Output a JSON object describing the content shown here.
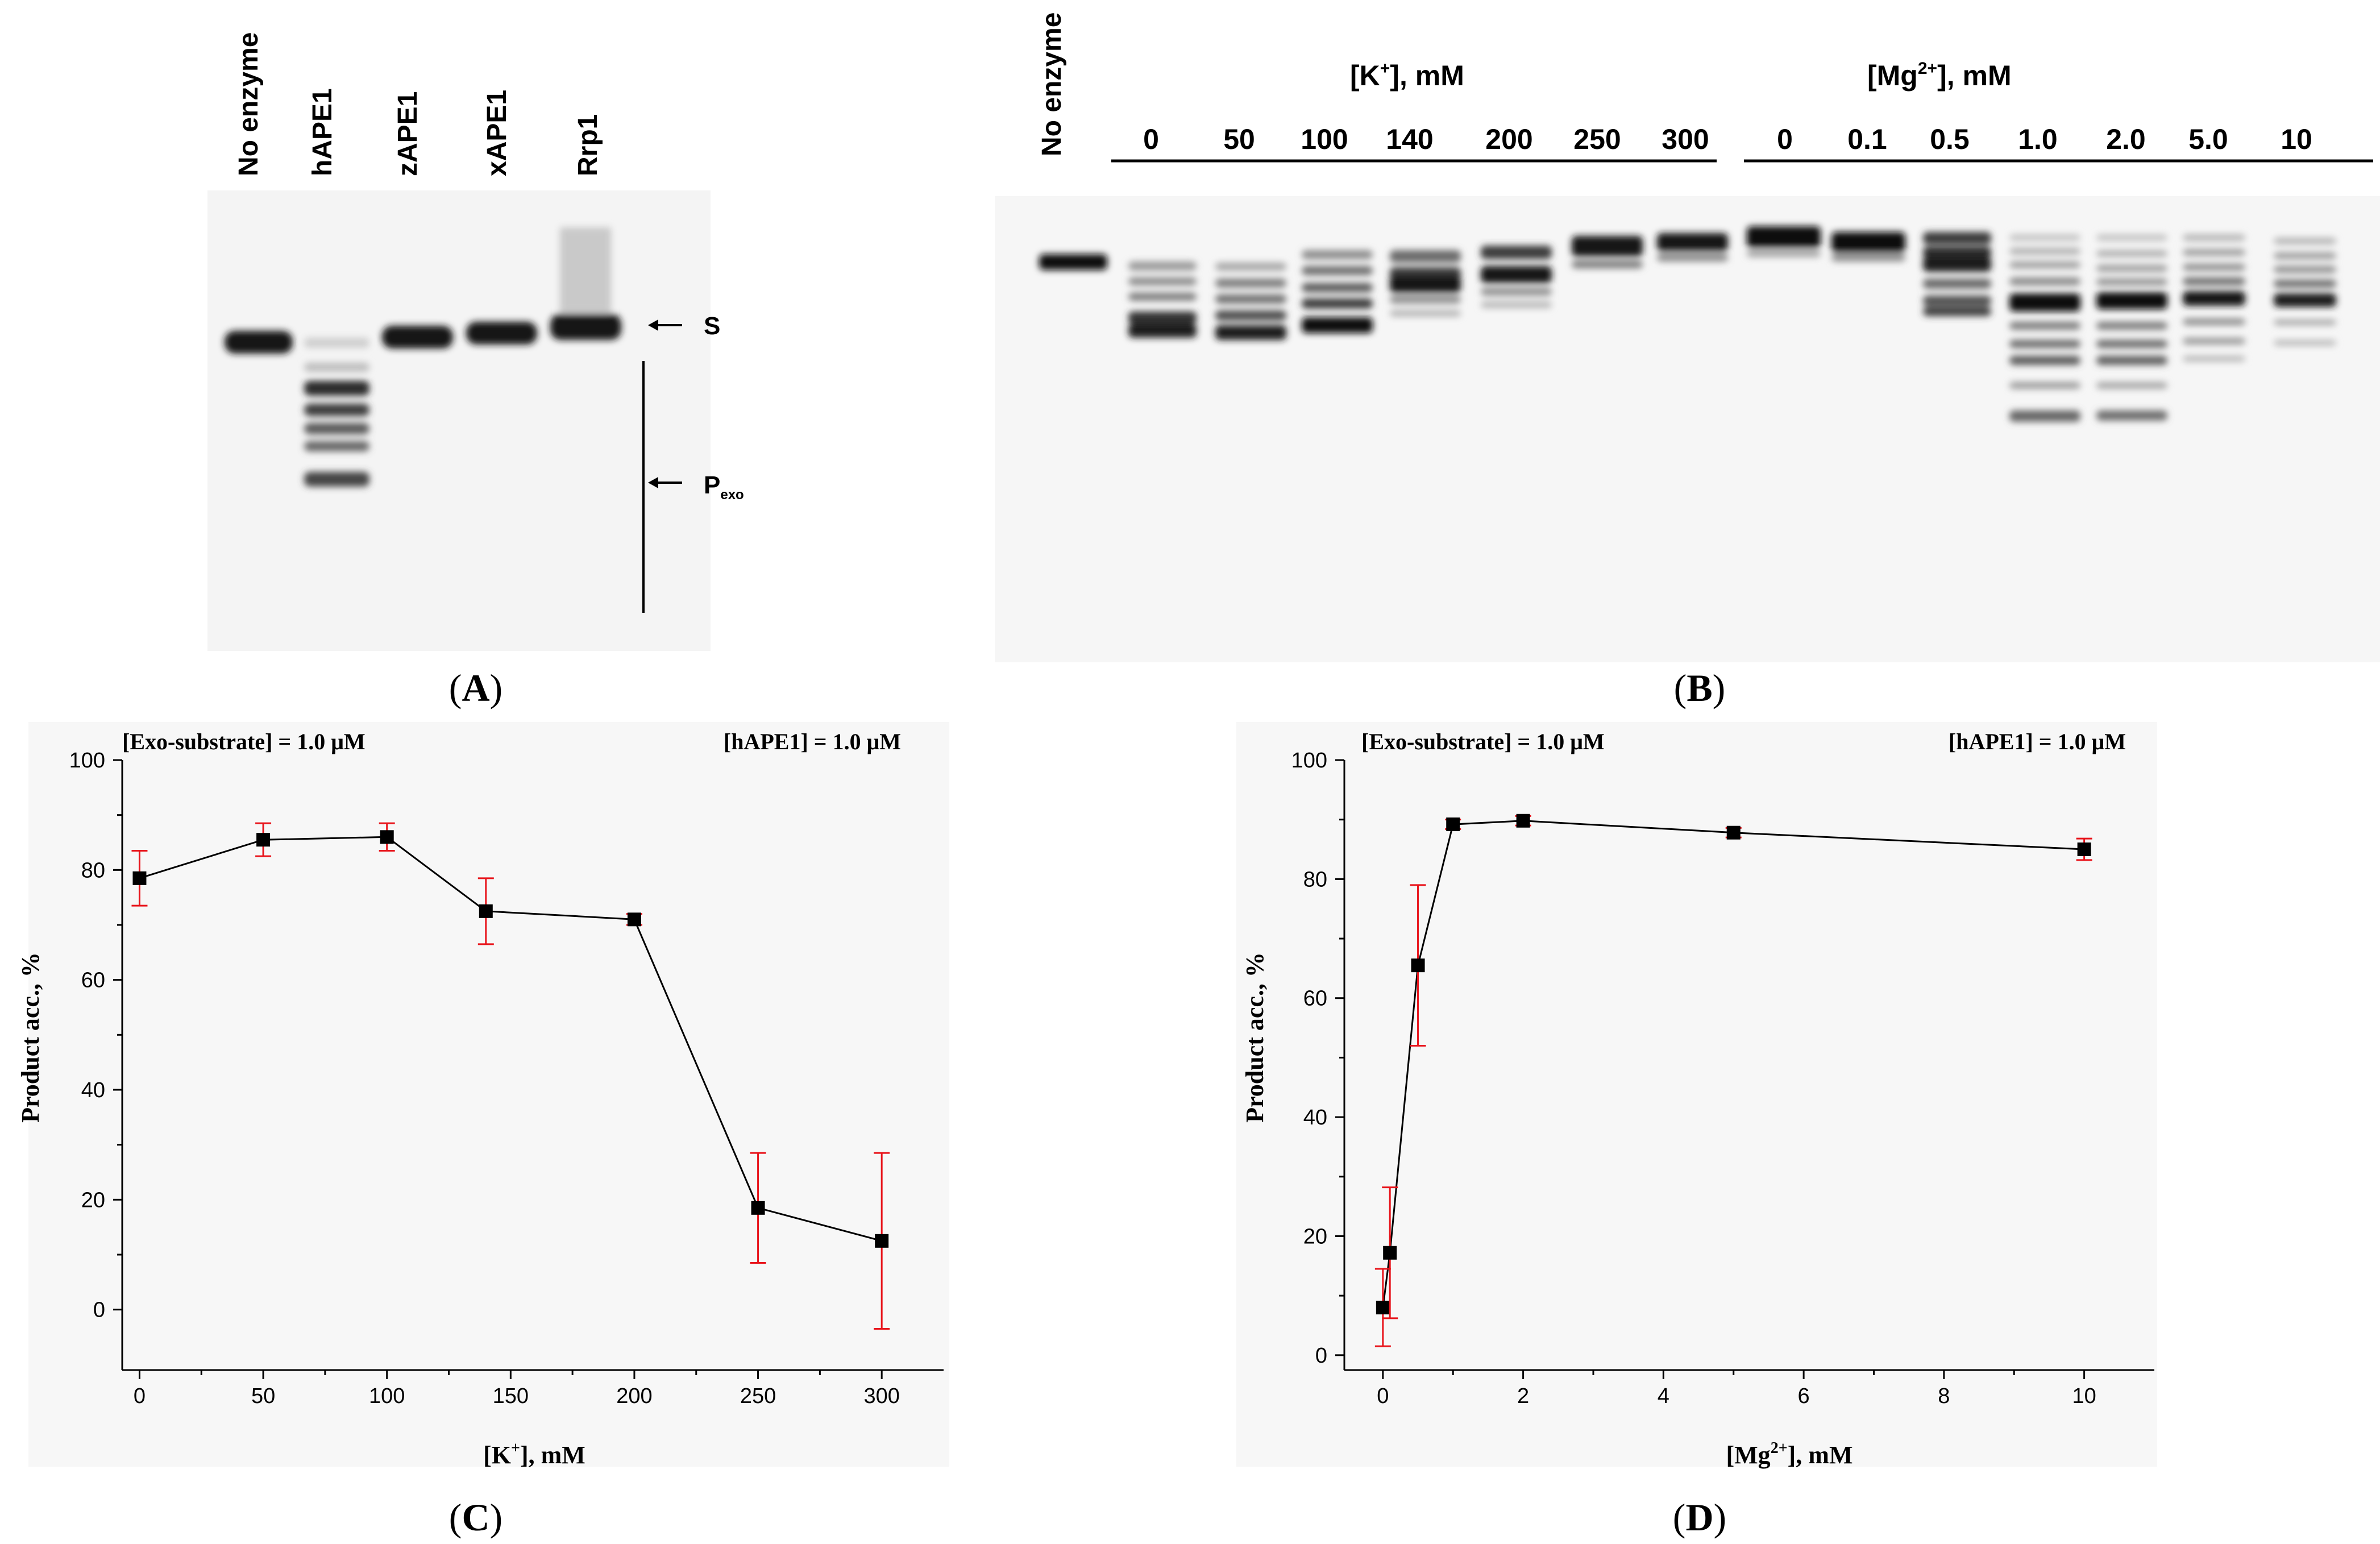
{
  "panels": {
    "a": {
      "label": "A"
    },
    "b": {
      "label": "B"
    },
    "c": {
      "label": "C"
    },
    "d": {
      "label": "D"
    }
  },
  "gel_a": {
    "lanes": [
      "No enzyme",
      "hAPE1",
      "zAPE1",
      "xAPE1",
      "Rrp1"
    ],
    "substrate_marker": "S",
    "product_marker_base": "P",
    "product_marker_sub": "exo"
  },
  "gel_b": {
    "no_enzyme_label": "No enzyme",
    "k_header": "[K",
    "k_header_sup": "+",
    "k_header_tail": "], mM",
    "k_values": [
      "0",
      "50",
      "100",
      "140",
      "200",
      "250",
      "300"
    ],
    "mg_header": "[Mg",
    "mg_header_sup": "2+",
    "mg_header_tail": "], mM",
    "mg_values": [
      "0",
      "0.1",
      "0.5",
      "1.0",
      "2.0",
      "5.0",
      "10"
    ]
  },
  "chart_data": [
    {
      "type": "scatter",
      "panel": "C",
      "line": true,
      "annotation_left": "[Exo-substrate] = 1.0 μM",
      "annotation_right": "[hAPE1] = 1.0 μM",
      "xlabel": "[K+], mM",
      "xlabel_base": "[K",
      "xlabel_sup": "+",
      "xlabel_tail": "], mM",
      "ylabel": "Product acc., %",
      "xlim": [
        -7,
        325
      ],
      "ylim": [
        -11,
        100
      ],
      "xticks": [
        0,
        50,
        100,
        150,
        200,
        250,
        300
      ],
      "yticks": [
        0,
        20,
        40,
        60,
        80,
        100
      ],
      "x": [
        0,
        50,
        100,
        140,
        200,
        250,
        300
      ],
      "y": [
        78.5,
        85.5,
        86,
        72.5,
        71,
        18.5,
        12.5
      ],
      "err": [
        5,
        3,
        2.5,
        6,
        1,
        10,
        16
      ],
      "marker_color": "#000000",
      "errorbar_color": "#e8141b"
    },
    {
      "type": "scatter",
      "panel": "D",
      "line": true,
      "annotation_left": "[Exo-substrate] = 1.0 μM",
      "annotation_right": "[hAPE1] = 1.0 μM",
      "xlabel": "[Mg2+], mM",
      "xlabel_base": "[Mg",
      "xlabel_sup": "2+",
      "xlabel_tail": "], mM",
      "ylabel": "Product acc., %",
      "xlim": [
        -0.55,
        11
      ],
      "ylim": [
        -2.5,
        100
      ],
      "xticks": [
        0,
        2,
        4,
        6,
        8,
        10
      ],
      "yticks": [
        0,
        20,
        40,
        60,
        80,
        100
      ],
      "x": [
        0,
        0.1,
        0.5,
        1,
        2,
        5,
        10
      ],
      "y": [
        8,
        17.2,
        65.5,
        89.2,
        89.8,
        87.8,
        85
      ],
      "err": [
        6.5,
        11,
        13.5,
        0.8,
        0.8,
        0.8,
        1.8
      ],
      "marker_color": "#000000",
      "errorbar_color": "#e8141b"
    }
  ]
}
